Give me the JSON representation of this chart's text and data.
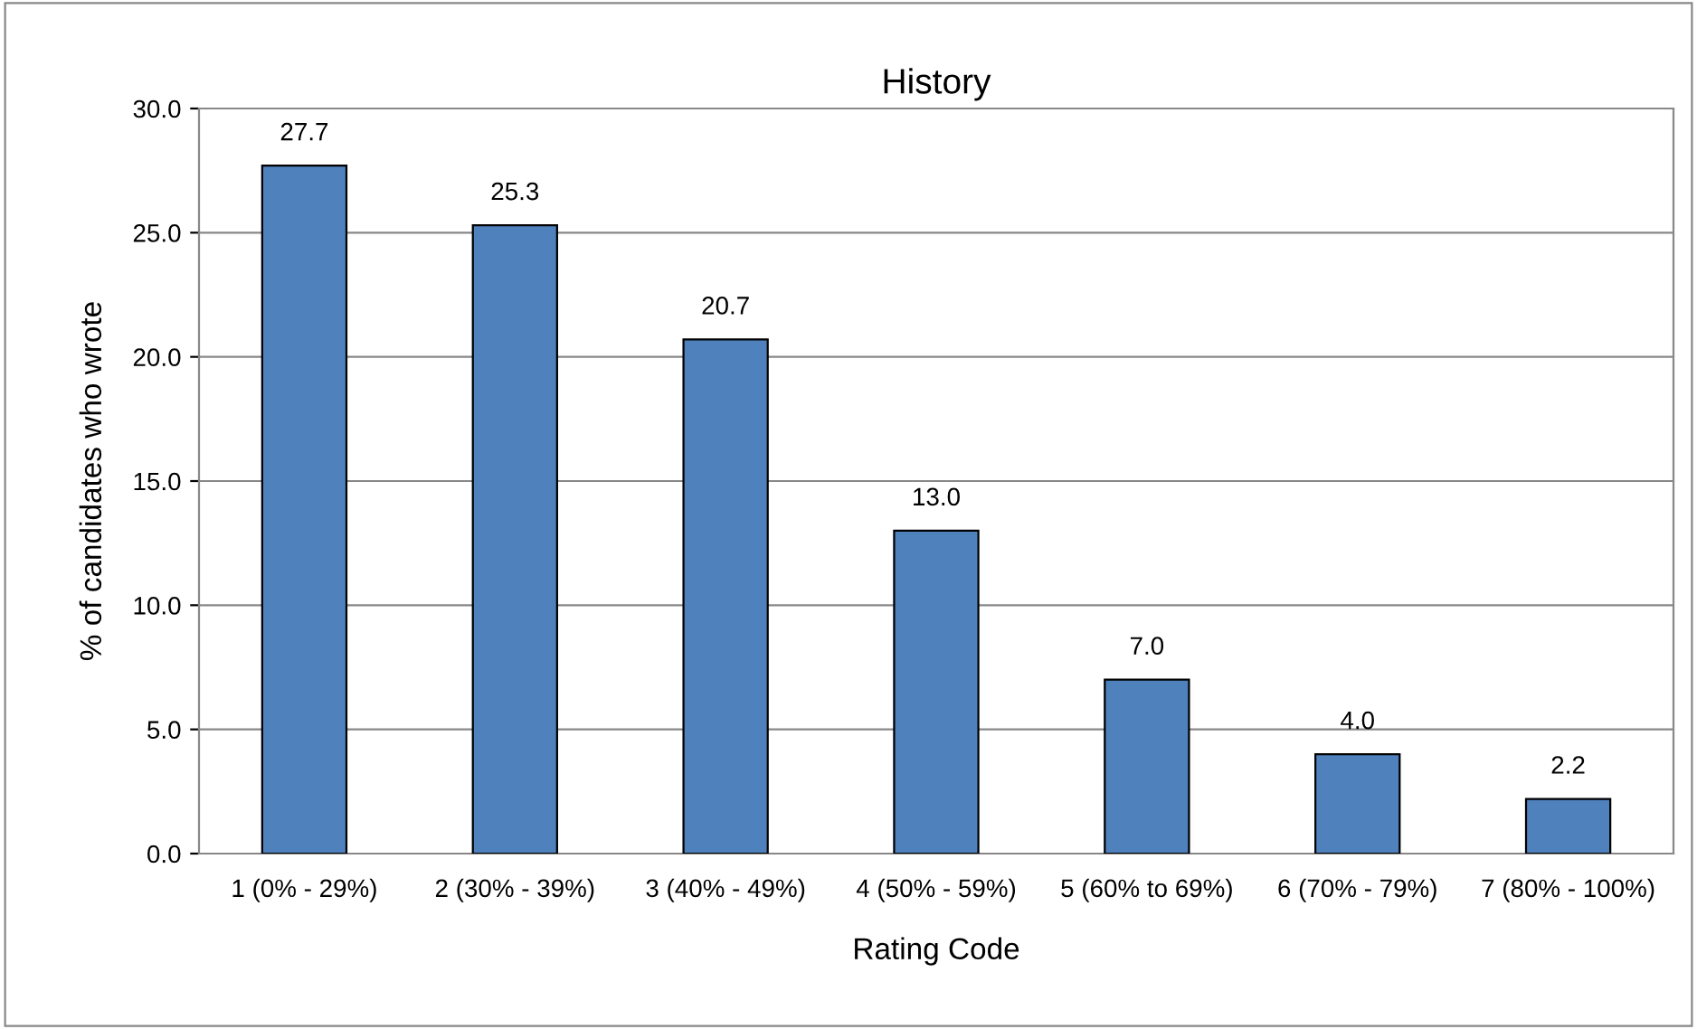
{
  "chart_data": {
    "type": "bar",
    "title": "History",
    "xlabel": "Rating Code",
    "ylabel": "% of candidates who wrote",
    "categories": [
      "1 (0% - 29%)",
      "2 (30% - 39%)",
      "3 (40% - 49%)",
      "4 (50% - 59%)",
      "5 (60% to 69%)",
      "6 (70% - 79%)",
      "7 (80% - 100%)"
    ],
    "values": [
      27.7,
      25.3,
      20.7,
      13.0,
      7.0,
      4.0,
      2.2
    ],
    "color": "#4f81bd",
    "value_labels": [
      "27.7",
      "25.3",
      "20.7",
      "13.0",
      "7.0",
      "4.0",
      "2.2"
    ],
    "ylim": [
      0,
      30
    ],
    "yticks": [
      {
        "value": 0,
        "label": "0.0"
      },
      {
        "value": 5,
        "label": "5.0"
      },
      {
        "value": 10,
        "label": "10.0"
      },
      {
        "value": 15,
        "label": "15.0"
      },
      {
        "value": 20,
        "label": "20.0"
      },
      {
        "value": 25,
        "label": "25.0"
      },
      {
        "value": 30,
        "label": "30.0"
      }
    ],
    "grid": "y",
    "legend": false
  }
}
